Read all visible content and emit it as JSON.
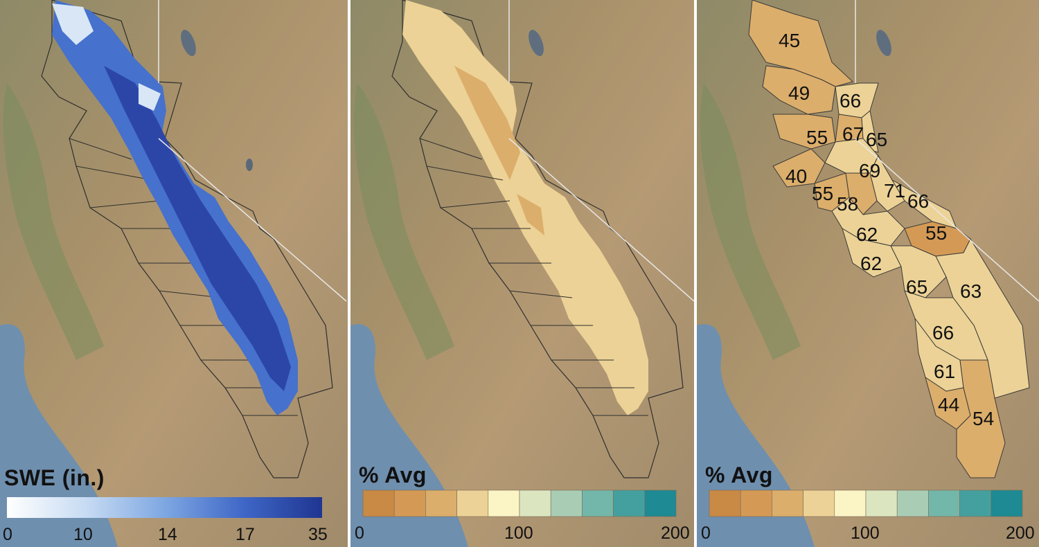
{
  "colors": {
    "swe_ramp": [
      "#ffffff",
      "#cfe0f4",
      "#8fb5e6",
      "#4f7fd6",
      "#2d4fb5",
      "#1e3590"
    ],
    "pct_classes": [
      "#c98a45",
      "#d49a55",
      "#dcae6b",
      "#ecd296",
      "#fbf5c6",
      "#dbe6c1",
      "#a9cdb4",
      "#73b6aa",
      "#44a09e",
      "#1e8a93"
    ]
  },
  "panels": [
    {
      "layer": "swe",
      "legend": {
        "title": "SWE (in.)",
        "ticks": [
          "0",
          "10",
          "14",
          "17",
          "35"
        ]
      }
    },
    {
      "layer": "pct_avg_raster",
      "legend": {
        "title": "% Avg",
        "ticks": [
          "0",
          "100",
          "200"
        ]
      }
    },
    {
      "layer": "pct_avg_basins",
      "legend": {
        "title": "% Avg",
        "ticks": [
          "0",
          "100",
          "200"
        ]
      },
      "basin_values": [
        "45",
        "49",
        "66",
        "55",
        "67",
        "65",
        "40",
        "69",
        "71",
        "55",
        "58",
        "66",
        "62",
        "55",
        "62",
        "65",
        "63",
        "66",
        "61",
        "44",
        "54"
      ]
    }
  ]
}
